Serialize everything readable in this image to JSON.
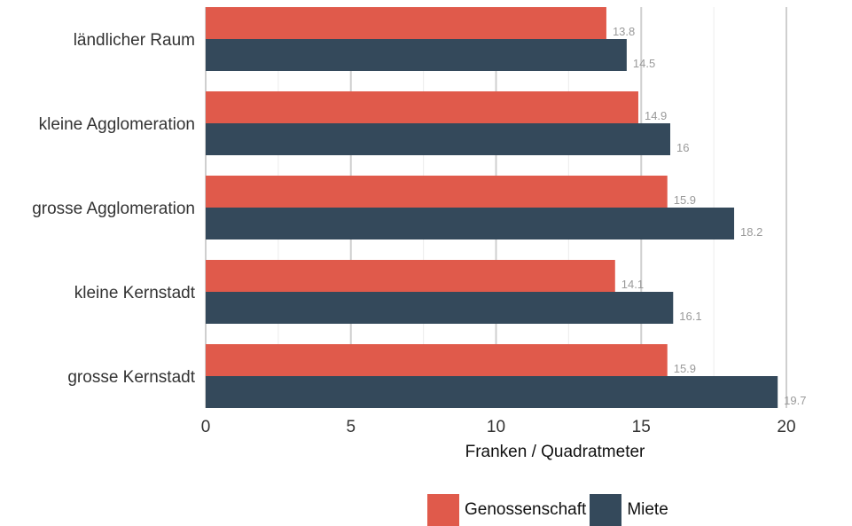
{
  "chart_data": {
    "type": "bar",
    "orientation": "horizontal",
    "categories": [
      "ländlicher Raum",
      "kleine Agglomeration",
      "grosse Agglomeration",
      "kleine Kernstadt",
      "grosse Kernstadt"
    ],
    "series": [
      {
        "name": "Genossenschaft",
        "color": "#e05a4b",
        "values": [
          13.8,
          14.9,
          15.9,
          14.1,
          15.9
        ]
      },
      {
        "name": "Miete",
        "color": "#34495b",
        "values": [
          14.5,
          16,
          18.2,
          16.1,
          19.7
        ]
      }
    ],
    "xlabel": "Franken / Quadratmeter",
    "ylabel": "",
    "xlim": [
      0,
      20
    ],
    "xticks": [
      "0",
      "5",
      "10",
      "15",
      "20"
    ],
    "grid": true,
    "legend_position": "bottom"
  }
}
